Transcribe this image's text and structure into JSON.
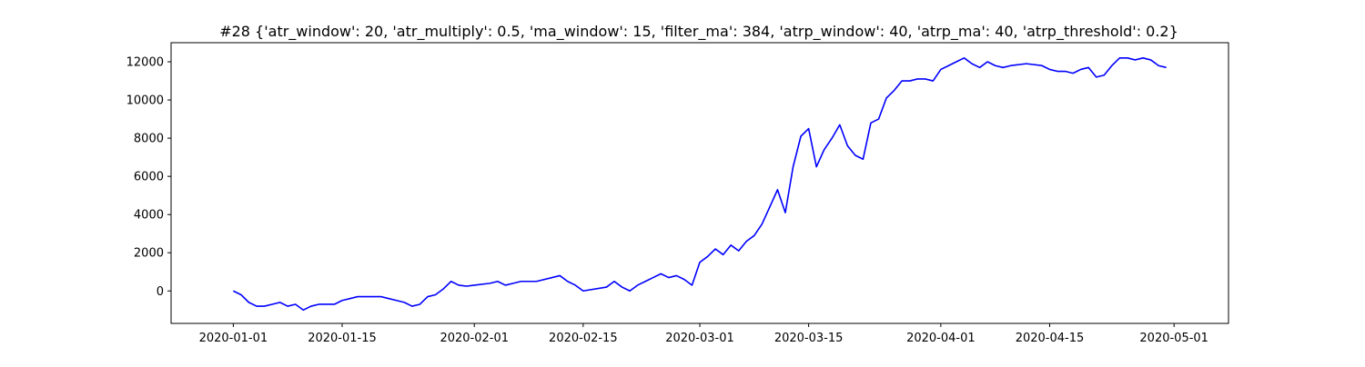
{
  "chart_data": {
    "type": "line",
    "title": "#28 {'atr_window': 20, 'atr_multiply': 0.5, 'ma_window': 15, 'filter_ma': 384, 'atrp_window': 40, 'atrp_ma': 40, 'atrp_threshold': 0.2}",
    "xlabel": "",
    "ylabel": "",
    "x_axis_type": "date",
    "xlim": [
      "2019-12-24",
      "2020-05-08"
    ],
    "ylim": [
      -1700,
      13000
    ],
    "x_ticks": [
      "2020-01-01",
      "2020-01-15",
      "2020-02-01",
      "2020-02-15",
      "2020-03-01",
      "2020-03-15",
      "2020-04-01",
      "2020-04-15",
      "2020-05-01"
    ],
    "y_ticks": [
      0,
      2000,
      4000,
      6000,
      8000,
      10000,
      12000
    ],
    "y_tick_labels": [
      "0",
      "2000",
      "4000",
      "6000",
      "8000",
      "10000",
      "12000"
    ],
    "grid": false,
    "legend": "none",
    "series": [
      {
        "color": "#0000ff",
        "x": [
          "2020-01-01",
          "2020-01-02",
          "2020-01-03",
          "2020-01-04",
          "2020-01-05",
          "2020-01-06",
          "2020-01-07",
          "2020-01-08",
          "2020-01-09",
          "2020-01-10",
          "2020-01-11",
          "2020-01-12",
          "2020-01-14",
          "2020-01-15",
          "2020-01-16",
          "2020-01-17",
          "2020-01-20",
          "2020-01-21",
          "2020-01-22",
          "2020-01-23",
          "2020-01-24",
          "2020-01-25",
          "2020-01-26",
          "2020-01-27",
          "2020-01-28",
          "2020-01-29",
          "2020-01-30",
          "2020-01-31",
          "2020-02-01",
          "2020-02-03",
          "2020-02-04",
          "2020-02-05",
          "2020-02-06",
          "2020-02-07",
          "2020-02-09",
          "2020-02-11",
          "2020-02-12",
          "2020-02-13",
          "2020-02-14",
          "2020-02-15",
          "2020-02-18",
          "2020-02-19",
          "2020-02-20",
          "2020-02-21",
          "2020-02-22",
          "2020-02-23",
          "2020-02-24",
          "2020-02-25",
          "2020-02-26",
          "2020-02-27",
          "2020-02-28",
          "2020-02-29",
          "2020-03-01",
          "2020-03-02",
          "2020-03-03",
          "2020-03-04",
          "2020-03-05",
          "2020-03-06",
          "2020-03-07",
          "2020-03-08",
          "2020-03-09",
          "2020-03-10",
          "2020-03-11",
          "2020-03-12",
          "2020-03-13",
          "2020-03-14",
          "2020-03-15",
          "2020-03-16",
          "2020-03-17",
          "2020-03-18",
          "2020-03-19",
          "2020-03-20",
          "2020-03-21",
          "2020-03-22",
          "2020-03-23",
          "2020-03-24",
          "2020-03-25",
          "2020-03-26",
          "2020-03-27",
          "2020-03-28",
          "2020-03-29",
          "2020-03-30",
          "2020-03-31",
          "2020-04-01",
          "2020-04-02",
          "2020-04-03",
          "2020-04-04",
          "2020-04-05",
          "2020-04-06",
          "2020-04-07",
          "2020-04-08",
          "2020-04-09",
          "2020-04-10",
          "2020-04-12",
          "2020-04-14",
          "2020-04-15",
          "2020-04-16",
          "2020-04-17",
          "2020-04-18",
          "2020-04-19",
          "2020-04-20",
          "2020-04-21",
          "2020-04-22",
          "2020-04-23",
          "2020-04-24",
          "2020-04-25",
          "2020-04-26",
          "2020-04-27",
          "2020-04-28",
          "2020-04-29",
          "2020-04-30"
        ],
        "values": [
          0,
          -200,
          -600,
          -800,
          -800,
          -700,
          -600,
          -800,
          -700,
          -1000,
          -800,
          -700,
          -700,
          -500,
          -400,
          -300,
          -300,
          -400,
          -500,
          -600,
          -800,
          -700,
          -300,
          -200,
          100,
          500,
          300,
          250,
          300,
          400,
          500,
          300,
          400,
          500,
          500,
          700,
          800,
          500,
          300,
          0,
          200,
          500,
          200,
          0,
          300,
          500,
          700,
          900,
          700,
          800,
          600,
          300,
          1500,
          1800,
          2200,
          1900,
          2400,
          2100,
          2600,
          2900,
          3500,
          4400,
          5300,
          4100,
          6500,
          8100,
          8500,
          6500,
          7400,
          8000,
          8700,
          7600,
          7100,
          6900,
          8800,
          9000,
          10100,
          10500,
          11000,
          11000,
          11100,
          11100,
          11000,
          11600,
          11800,
          12000,
          12200,
          11900,
          11700,
          12000,
          11800,
          11700,
          11800,
          11900,
          11800,
          11600,
          11500,
          11500,
          11400,
          11600,
          11700,
          11200,
          11300,
          11800,
          12200,
          12200,
          12100,
          12200,
          12100,
          11800,
          11700
        ]
      }
    ]
  }
}
